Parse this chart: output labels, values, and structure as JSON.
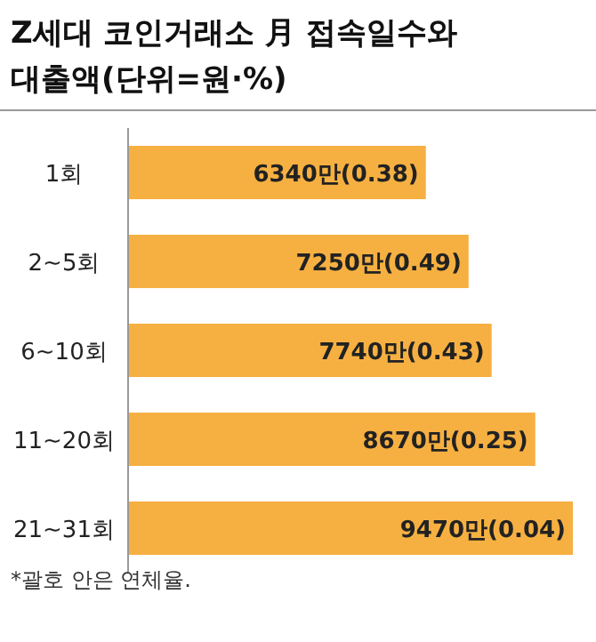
{
  "chart_data": {
    "type": "bar",
    "orientation": "horizontal",
    "title": "Z세대 코인거래소 月 접속일수와",
    "subtitle": "대출액(단위=원·%)",
    "categories": [
      "1회",
      "2~5회",
      "6~10회",
      "11~20회",
      "21~31회"
    ],
    "values": [
      6340,
      7250,
      7740,
      8670,
      9470
    ],
    "value_labels": [
      "6340만(0.38)",
      "7250만(0.49)",
      "7740만(0.43)",
      "8670만(0.25)",
      "9470만(0.04)"
    ],
    "color": "#f6b042",
    "annotations": [
      "*괄호 안은 연체율."
    ]
  }
}
